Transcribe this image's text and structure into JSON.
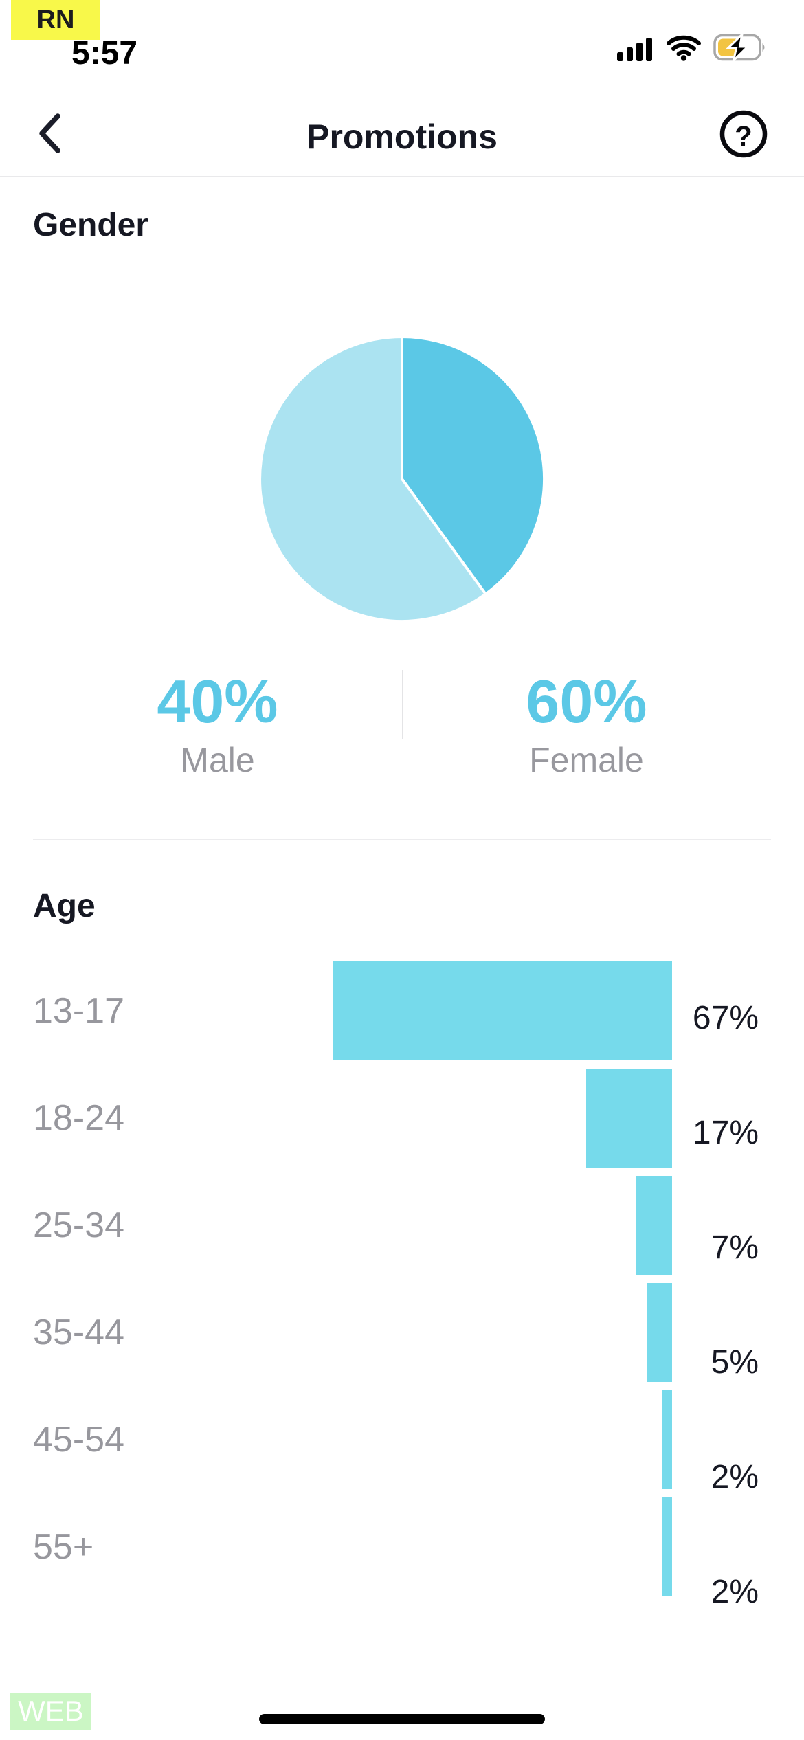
{
  "status_bar": {
    "environment_badge": "RN",
    "time": "5:57"
  },
  "header": {
    "title": "Promotions"
  },
  "gender_section": {
    "heading": "Gender"
  },
  "age_section": {
    "heading": "Age"
  },
  "footer": {
    "platform_badge": "WEB"
  },
  "colors": {
    "accent_cyan": "#5BC8E6",
    "pie_male": "#5BC8E6",
    "pie_female": "#ABE3F1",
    "bar_fill": "#76DAEB",
    "text_dark": "#161823",
    "text_gray": "#98989E",
    "divider": "#E9E9EB",
    "badge_yellow": "#F8F84A",
    "badge_green": "#CBF6C4",
    "battery_fill": "#F2C442"
  },
  "chart_data": [
    {
      "type": "pie",
      "title": "Gender",
      "labels": [
        "Male",
        "Female"
      ],
      "values": [
        40,
        60
      ],
      "value_labels": [
        "40%",
        "60%"
      ],
      "colors": [
        "#5BC8E6",
        "#ABE3F1"
      ],
      "start_angle_deg": 0,
      "direction": "clockwise",
      "slice_gap_stroke": "#FFFFFF",
      "legend_position": "below"
    },
    {
      "type": "bar",
      "title": "Age",
      "orientation": "horizontal",
      "alignment": "bars-right-edge-aligned",
      "categories": [
        "13-17",
        "18-24",
        "25-34",
        "35-44",
        "45-54",
        "55+"
      ],
      "values": [
        67,
        17,
        7,
        5,
        2,
        2
      ],
      "value_labels": [
        "67%",
        "17%",
        "7%",
        "5%",
        "2%",
        "2%"
      ],
      "bar_color": "#76DAEB",
      "xlim": [
        0,
        100
      ],
      "grid": false
    }
  ]
}
